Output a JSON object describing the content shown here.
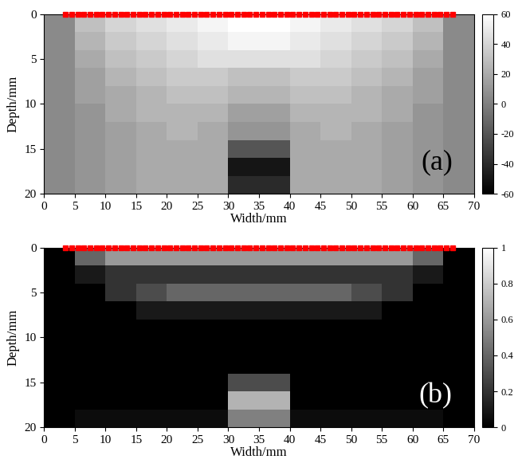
{
  "chart_data": [
    {
      "type": "heatmap",
      "annotation": "(a)",
      "xlabel": "Width/mm",
      "ylabel": "Depth/mm",
      "xlim": [
        0,
        70
      ],
      "ylim": [
        20,
        0
      ],
      "xticks": [
        0,
        5,
        10,
        15,
        20,
        25,
        30,
        35,
        40,
        45,
        50,
        55,
        60,
        65,
        70
      ],
      "yticks": [
        0,
        5,
        10,
        15,
        20
      ],
      "color": "gray",
      "x_edges": [
        0,
        5,
        10,
        15,
        20,
        25,
        30,
        35,
        40,
        45,
        50,
        55,
        60,
        65,
        70
      ],
      "y_edges": [
        0,
        2,
        4,
        6,
        8,
        10,
        12,
        14,
        16,
        18,
        20
      ],
      "cells": [
        [
          5,
          30,
          40,
          45,
          50,
          55,
          60,
          60,
          55,
          50,
          45,
          40,
          30,
          5
        ],
        [
          5,
          25,
          35,
          40,
          45,
          50,
          55,
          55,
          50,
          45,
          40,
          35,
          25,
          5
        ],
        [
          5,
          20,
          30,
          35,
          40,
          45,
          45,
          45,
          45,
          40,
          35,
          30,
          20,
          5
        ],
        [
          5,
          15,
          25,
          30,
          35,
          35,
          30,
          30,
          35,
          35,
          30,
          25,
          15,
          5
        ],
        [
          5,
          15,
          20,
          25,
          30,
          30,
          25,
          25,
          30,
          30,
          25,
          20,
          15,
          5
        ],
        [
          5,
          10,
          20,
          25,
          25,
          25,
          15,
          15,
          25,
          25,
          25,
          20,
          10,
          5
        ],
        [
          5,
          10,
          15,
          20,
          25,
          20,
          10,
          10,
          20,
          25,
          20,
          15,
          10,
          5
        ],
        [
          5,
          10,
          15,
          20,
          20,
          20,
          -20,
          -20,
          20,
          20,
          20,
          15,
          10,
          5
        ],
        [
          5,
          10,
          15,
          20,
          20,
          20,
          -50,
          -50,
          20,
          20,
          20,
          15,
          10,
          5
        ],
        [
          5,
          10,
          15,
          20,
          20,
          20,
          -40,
          -40,
          20,
          20,
          20,
          15,
          10,
          5
        ]
      ],
      "colorbar": {
        "range": [
          -60,
          60
        ],
        "ticks": [
          -60,
          -40,
          -20,
          0,
          20,
          40,
          60
        ]
      },
      "elements": {
        "x": [
          3.5,
          4.5,
          5.5,
          6.5,
          7.5,
          8.5,
          9.5,
          10.5,
          11.5,
          12.5,
          13.5,
          14.5,
          15.5,
          16.5,
          17.5,
          18.5,
          19.5,
          20.5,
          21.5,
          22.5,
          23.5,
          24.5,
          25.5,
          26.5,
          27.5,
          28.5,
          29.5,
          30.5,
          31.5,
          32.5,
          33.5,
          34.5,
          35.5,
          36.5,
          37.5,
          38.5,
          39.5,
          40.5,
          41.5,
          42.5,
          43.5,
          44.5,
          45.5,
          46.5,
          47.5,
          48.5,
          49.5,
          50.5,
          51.5,
          52.5,
          53.5,
          54.5,
          55.5,
          56.5,
          57.5,
          58.5,
          59.5,
          60.5,
          61.5,
          62.5,
          63.5,
          64.5,
          65.5,
          66.5
        ],
        "depth": 0,
        "color": "red",
        "marker": "square"
      }
    },
    {
      "type": "heatmap",
      "annotation": "(b)",
      "xlabel": "Width/mm",
      "ylabel": "Depth/mm",
      "xlim": [
        0,
        70
      ],
      "ylim": [
        20,
        0
      ],
      "xticks": [
        0,
        5,
        10,
        15,
        20,
        25,
        30,
        35,
        40,
        45,
        50,
        55,
        60,
        65,
        70
      ],
      "yticks": [
        0,
        5,
        10,
        15,
        20
      ],
      "color": "gray",
      "x_edges": [
        0,
        5,
        10,
        15,
        20,
        25,
        30,
        35,
        40,
        45,
        50,
        55,
        60,
        65,
        70
      ],
      "y_edges": [
        0,
        2,
        4,
        6,
        8,
        10,
        12,
        14,
        16,
        18,
        20
      ],
      "cells": [
        [
          0,
          0.4,
          0.6,
          0.6,
          0.6,
          0.6,
          0.6,
          0.6,
          0.6,
          0.6,
          0.6,
          0.6,
          0.4,
          0
        ],
        [
          0,
          0.1,
          0.2,
          0.2,
          0.2,
          0.2,
          0.2,
          0.2,
          0.2,
          0.2,
          0.2,
          0.2,
          0.1,
          0
        ],
        [
          0,
          0,
          0.2,
          0.3,
          0.4,
          0.4,
          0.4,
          0.4,
          0.4,
          0.4,
          0.3,
          0.2,
          0,
          0
        ],
        [
          0,
          0,
          0,
          0.1,
          0.1,
          0.1,
          0.1,
          0.1,
          0.1,
          0.1,
          0.1,
          0,
          0,
          0
        ],
        [
          0,
          0,
          0,
          0,
          0,
          0,
          0,
          0,
          0,
          0,
          0,
          0,
          0,
          0
        ],
        [
          0,
          0,
          0,
          0,
          0,
          0,
          0,
          0,
          0,
          0,
          0,
          0,
          0,
          0
        ],
        [
          0,
          0,
          0,
          0,
          0,
          0,
          0,
          0,
          0,
          0,
          0,
          0,
          0,
          0
        ],
        [
          0,
          0,
          0,
          0,
          0,
          0,
          0.3,
          0.3,
          0,
          0,
          0,
          0,
          0,
          0
        ],
        [
          0,
          0,
          0,
          0,
          0,
          0,
          0.7,
          0.7,
          0,
          0,
          0,
          0,
          0,
          0
        ],
        [
          0,
          0.05,
          0.05,
          0.05,
          0.05,
          0.05,
          0.5,
          0.5,
          0.05,
          0.05,
          0.05,
          0.05,
          0.05,
          0
        ]
      ],
      "colorbar": {
        "range": [
          0,
          1
        ],
        "ticks": [
          0,
          0.2,
          0.4,
          0.6,
          0.8,
          1
        ]
      },
      "elements": {
        "x": [
          3.5,
          4.5,
          5.5,
          6.5,
          7.5,
          8.5,
          9.5,
          10.5,
          11.5,
          12.5,
          13.5,
          14.5,
          15.5,
          16.5,
          17.5,
          18.5,
          19.5,
          20.5,
          21.5,
          22.5,
          23.5,
          24.5,
          25.5,
          26.5,
          27.5,
          28.5,
          29.5,
          30.5,
          31.5,
          32.5,
          33.5,
          34.5,
          35.5,
          36.5,
          37.5,
          38.5,
          39.5,
          40.5,
          41.5,
          42.5,
          43.5,
          44.5,
          45.5,
          46.5,
          47.5,
          48.5,
          49.5,
          50.5,
          51.5,
          52.5,
          53.5,
          54.5,
          55.5,
          56.5,
          57.5,
          58.5,
          59.5,
          60.5,
          61.5,
          62.5,
          63.5,
          64.5,
          65.5,
          66.5
        ],
        "depth": 0,
        "color": "red",
        "marker": "square"
      }
    }
  ]
}
